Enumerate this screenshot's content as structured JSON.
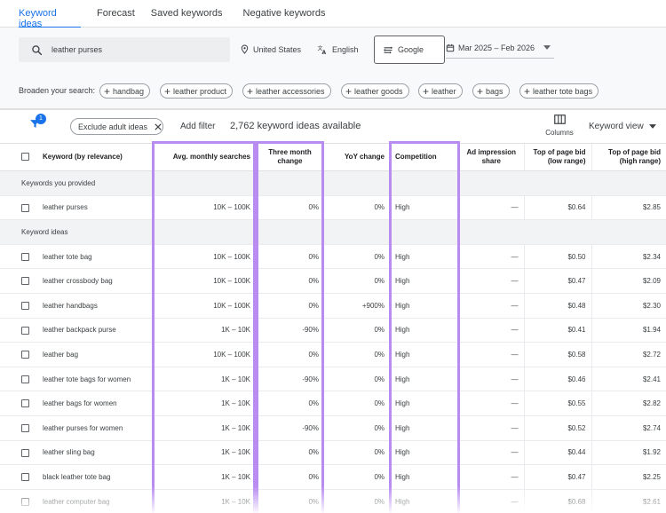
{
  "tabs": [
    {
      "label": "Keyword ideas",
      "active": true
    },
    {
      "label": "Forecast",
      "active": false
    },
    {
      "label": "Saved keywords",
      "active": false
    },
    {
      "label": "Negative keywords",
      "active": false
    }
  ],
  "search": {
    "value": "leather purses"
  },
  "filters": {
    "location": "United States",
    "language": "English",
    "network": "Google",
    "date_range": "Mar 2025 – Feb 2026"
  },
  "broaden": {
    "label": "Broaden your search:",
    "chips": [
      "handbag",
      "leather product",
      "leather accessories",
      "leather goods",
      "leather",
      "bags",
      "leather tote bags"
    ]
  },
  "toolbar": {
    "filter_badge": "1",
    "adult_chip": "Exclude adult ideas",
    "add_filter": "Add filter",
    "count_text": "2,762 keyword ideas available",
    "columns_label": "Columns",
    "view_label": "Keyword view"
  },
  "table": {
    "headers": {
      "keyword": "Keyword (by relevance)",
      "avg": "Avg. monthly searches",
      "three_month": "Three month change",
      "yoy": "YoY change",
      "competition": "Competition",
      "impression": "Ad impression share",
      "bid_low": "Top of page bid (low range)",
      "bid_high": "Top of page bid (high range)"
    },
    "section_provided": "Keywords you provided",
    "section_ideas": "Keyword ideas",
    "provided": [
      {
        "keyword": "leather purses",
        "avg": "10K – 100K",
        "three": "0%",
        "yoy": "0%",
        "comp": "High",
        "imp": "—",
        "low": "$0.64",
        "high": "$2.85"
      }
    ],
    "ideas": [
      {
        "keyword": "leather tote bag",
        "avg": "10K – 100K",
        "three": "0%",
        "yoy": "0%",
        "comp": "High",
        "imp": "—",
        "low": "$0.50",
        "high": "$2.34"
      },
      {
        "keyword": "leather crossbody bag",
        "avg": "10K – 100K",
        "three": "0%",
        "yoy": "0%",
        "comp": "High",
        "imp": "—",
        "low": "$0.47",
        "high": "$2.09"
      },
      {
        "keyword": "leather handbags",
        "avg": "10K – 100K",
        "three": "0%",
        "yoy": "+900%",
        "comp": "High",
        "imp": "—",
        "low": "$0.48",
        "high": "$2.30"
      },
      {
        "keyword": "leather backpack purse",
        "avg": "1K – 10K",
        "three": "-90%",
        "yoy": "0%",
        "comp": "High",
        "imp": "—",
        "low": "$0.41",
        "high": "$1.94"
      },
      {
        "keyword": "leather bag",
        "avg": "10K – 100K",
        "three": "0%",
        "yoy": "0%",
        "comp": "High",
        "imp": "—",
        "low": "$0.58",
        "high": "$2.72"
      },
      {
        "keyword": "leather tote bags for women",
        "avg": "1K – 10K",
        "three": "-90%",
        "yoy": "0%",
        "comp": "High",
        "imp": "—",
        "low": "$0.46",
        "high": "$2.41"
      },
      {
        "keyword": "leather bags for women",
        "avg": "1K – 10K",
        "three": "0%",
        "yoy": "0%",
        "comp": "High",
        "imp": "—",
        "low": "$0.55",
        "high": "$2.82"
      },
      {
        "keyword": "leather purses for women",
        "avg": "1K – 10K",
        "three": "-90%",
        "yoy": "0%",
        "comp": "High",
        "imp": "—",
        "low": "$0.52",
        "high": "$2.74"
      },
      {
        "keyword": "leather sling bag",
        "avg": "1K – 10K",
        "three": "0%",
        "yoy": "0%",
        "comp": "High",
        "imp": "—",
        "low": "$0.44",
        "high": "$1.92"
      },
      {
        "keyword": "black leather tote bag",
        "avg": "1K – 10K",
        "three": "0%",
        "yoy": "0%",
        "comp": "High",
        "imp": "—",
        "low": "$0.47",
        "high": "$2.25"
      },
      {
        "keyword": "leather computer bag",
        "avg": "1K – 10K",
        "three": "0%",
        "yoy": "0%",
        "comp": "High",
        "imp": "—",
        "low": "$0.68",
        "high": "$2.61"
      }
    ]
  },
  "colors": {
    "accent": "#1a73e8",
    "highlight": "#b88cf0",
    "header_bg": "#f8f9fa"
  }
}
